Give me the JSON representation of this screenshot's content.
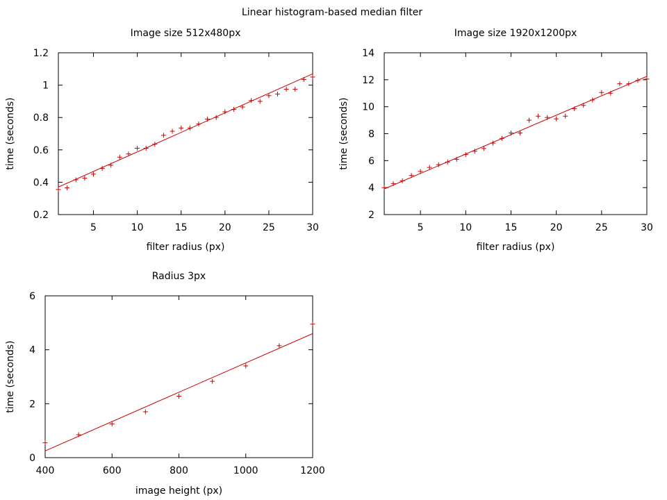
{
  "figure_title": "Linear histogram-based median filter",
  "chart_data": [
    {
      "id": "c1",
      "type": "scatter",
      "title": "Image size 512x480px",
      "xlabel": "filter radius (px)",
      "ylabel": "time (seconds)",
      "xlim": [
        1,
        30
      ],
      "ylim": [
        0.2,
        1.2
      ],
      "xticks": [
        5,
        10,
        15,
        20,
        25,
        30
      ],
      "yticks": [
        0.2,
        0.4,
        0.6,
        0.8,
        1,
        1.2
      ],
      "grid": false,
      "legend": "none",
      "series": [
        {
          "x": [
            1,
            2,
            3,
            4,
            5,
            6,
            7,
            8,
            9,
            10,
            11,
            12,
            13,
            14,
            15,
            16,
            17,
            18,
            19,
            20,
            21,
            22,
            23,
            24,
            25,
            26,
            27,
            28,
            29,
            30
          ],
          "y": [
            0.355,
            0.365,
            0.415,
            0.425,
            0.45,
            0.485,
            0.505,
            0.555,
            0.575,
            0.61,
            0.61,
            0.635,
            0.69,
            0.715,
            0.735,
            0.735,
            0.76,
            0.79,
            0.8,
            0.835,
            0.85,
            0.865,
            0.905,
            0.9,
            0.935,
            0.945,
            0.975,
            0.975,
            1.035,
            1.05
          ],
          "fit": [
            0.37,
            1.07
          ]
        }
      ]
    },
    {
      "id": "c2",
      "type": "scatter",
      "title": "Image size 1920x1200px",
      "xlabel": "filter radius (px)",
      "ylabel": "time (seconds)",
      "xlim": [
        1,
        30
      ],
      "ylim": [
        2,
        14
      ],
      "xticks": [
        5,
        10,
        15,
        20,
        25,
        30
      ],
      "yticks": [
        2,
        4,
        6,
        8,
        10,
        12,
        14
      ],
      "grid": false,
      "legend": "none",
      "series": [
        {
          "x": [
            1,
            2,
            3,
            4,
            5,
            6,
            7,
            8,
            9,
            10,
            11,
            12,
            13,
            14,
            15,
            16,
            17,
            18,
            19,
            20,
            21,
            22,
            23,
            24,
            25,
            26,
            27,
            28,
            29,
            30
          ],
          "y": [
            4.0,
            4.3,
            4.5,
            4.9,
            5.2,
            5.5,
            5.7,
            5.9,
            6.1,
            6.45,
            6.7,
            6.9,
            7.3,
            7.65,
            8.05,
            8.05,
            9.0,
            9.3,
            9.2,
            9.1,
            9.3,
            9.85,
            10.1,
            10.5,
            11.05,
            11.0,
            11.7,
            11.7,
            11.95,
            12.05
          ],
          "fit": [
            3.9,
            12.25
          ]
        }
      ]
    },
    {
      "id": "c3",
      "type": "scatter",
      "title": "Radius 3px",
      "xlabel": "image height (px)",
      "ylabel": "time (seconds)",
      "xlim": [
        400,
        1200
      ],
      "ylim": [
        0,
        6
      ],
      "xticks": [
        400,
        600,
        800,
        1000,
        1200
      ],
      "yticks": [
        0,
        2,
        4,
        6
      ],
      "grid": false,
      "legend": "none",
      "series": [
        {
          "x": [
            400,
            500,
            600,
            700,
            800,
            900,
            1000,
            1100,
            1200
          ],
          "y": [
            0.55,
            0.85,
            1.25,
            1.7,
            2.28,
            2.83,
            3.4,
            4.15,
            4.95
          ],
          "fit": [
            0.25,
            4.6
          ]
        }
      ]
    }
  ],
  "colors": {
    "series": "#cc0000",
    "axis": "#000000"
  }
}
